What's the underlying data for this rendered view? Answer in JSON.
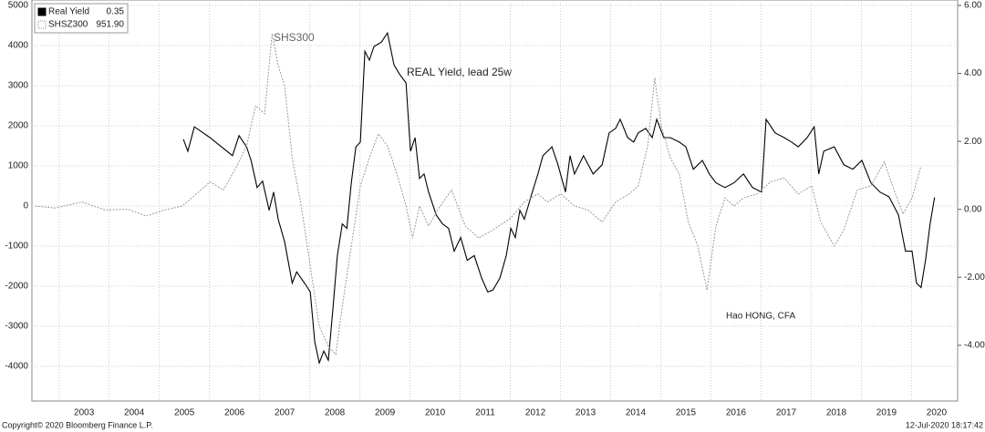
{
  "chart_data": {
    "type": "line",
    "xlim": [
      2002.46,
      2020.92
    ],
    "xticks": [
      2003,
      2004,
      2005,
      2006,
      2007,
      2008,
      2009,
      2010,
      2011,
      2012,
      2013,
      2014,
      2015,
      2016,
      2017,
      2018,
      2019,
      2020
    ],
    "ylim": [
      -4864,
      5136
    ],
    "yticks": [
      5000,
      4000,
      3000,
      2000,
      1000,
      0,
      -1000,
      -2000,
      -3000,
      -4000
    ],
    "y2lim": [
      -5.64,
      6.16
    ],
    "y2ticks": [
      {
        "value": 6,
        "label": "6.00"
      },
      {
        "value": 4,
        "label": "4.00"
      },
      {
        "value": 2,
        "label": "2.00"
      },
      {
        "value": 0,
        "label": "0.00"
      },
      {
        "value": -2,
        "label": "-2.00"
      },
      {
        "value": -4,
        "label": "-4.00"
      }
    ],
    "grid": true,
    "legend": "upper left",
    "annotations": [
      "SHS300",
      "REAL Yield, lead 25w",
      "Hao HONG, CFA"
    ],
    "footer": [
      "Copyright© 2020 Bloomberg Finance L.P.",
      "12-Jul-2020 18:17:42"
    ],
    "series": [
      {
        "name": "Real Yield",
        "color": "#000000",
        "axis": "y2",
        "last_value": 0.35,
        "x": [
          2005.48,
          2005.57,
          2005.7,
          2006.01,
          2006.46,
          2006.59,
          2006.74,
          2006.83,
          2006.95,
          2007.06,
          2007.19,
          2007.28,
          2007.37,
          2007.5,
          2007.65,
          2007.74,
          2007.92,
          2008.01,
          2008.1,
          2008.19,
          2008.28,
          2008.37,
          2008.46,
          2008.55,
          2008.65,
          2008.74,
          2008.83,
          2008.92,
          2009.01,
          2009.1,
          2009.19,
          2009.28,
          2009.43,
          2009.55,
          2009.68,
          2009.79,
          2009.92,
          2010.01,
          2010.1,
          2010.19,
          2010.28,
          2010.37,
          2010.52,
          2010.65,
          2010.77,
          2010.88,
          2011.01,
          2011.14,
          2011.28,
          2011.43,
          2011.55,
          2011.65,
          2011.79,
          2011.92,
          2012.01,
          2012.1,
          2012.19,
          2012.28,
          2012.41,
          2012.55,
          2012.65,
          2012.83,
          2012.95,
          2013.1,
          2013.19,
          2013.28,
          2013.46,
          2013.65,
          2013.83,
          2013.97,
          2014.1,
          2014.19,
          2014.34,
          2014.46,
          2014.55,
          2014.7,
          2014.83,
          2014.92,
          2015.06,
          2015.19,
          2015.37,
          2015.5,
          2015.65,
          2015.83,
          2015.97,
          2016.1,
          2016.28,
          2016.46,
          2016.65,
          2016.83,
          2017.01,
          2017.1,
          2017.28,
          2017.46,
          2017.61,
          2017.74,
          2017.92,
          2018.06,
          2018.15,
          2018.25,
          2018.46,
          2018.65,
          2018.83,
          2019.01,
          2019.19,
          2019.37,
          2019.55,
          2019.74,
          2019.88,
          2020.01,
          2020.1,
          2020.19,
          2020.28,
          2020.37,
          2020.46
        ],
        "values": [
          2.06,
          1.71,
          2.43,
          2.11,
          1.58,
          2.17,
          1.84,
          1.44,
          0.64,
          0.83,
          -0.03,
          0.51,
          -0.29,
          -0.96,
          -2.17,
          -1.84,
          -2.22,
          -2.43,
          -3.9,
          -4.52,
          -4.17,
          -4.44,
          -2.97,
          -1.36,
          -0.43,
          -0.56,
          0.78,
          1.84,
          1.98,
          4.65,
          4.39,
          4.79,
          4.92,
          5.19,
          4.25,
          3.98,
          3.72,
          1.71,
          2.11,
          0.91,
          1.04,
          0.51,
          -0.16,
          -0.43,
          -0.56,
          -1.23,
          -0.83,
          -1.5,
          -1.36,
          -2.03,
          -2.43,
          -2.38,
          -2.03,
          -1.36,
          -0.56,
          -0.83,
          -0.03,
          -0.29,
          0.37,
          1.04,
          1.58,
          1.84,
          1.31,
          0.51,
          1.58,
          1.04,
          1.58,
          1.04,
          1.31,
          2.25,
          2.38,
          2.65,
          2.11,
          1.98,
          2.25,
          2.38,
          2.11,
          2.65,
          2.11,
          2.11,
          1.98,
          1.84,
          1.18,
          1.44,
          1.04,
          0.78,
          0.64,
          0.78,
          1.04,
          0.64,
          0.51,
          2.65,
          2.25,
          2.11,
          1.98,
          1.84,
          2.11,
          2.43,
          1.04,
          1.71,
          1.84,
          1.31,
          1.18,
          1.44,
          0.78,
          0.51,
          0.37,
          -0.16,
          -1.23,
          -1.23,
          -2.17,
          -2.3,
          -1.5,
          -0.43,
          0.35
        ]
      },
      {
        "name": "SHSZ300",
        "color": "#999999",
        "axis": "y",
        "last_value": 951.9,
        "last_value_label": "951.90",
        "x": [
          2002.52,
          2002.92,
          2003.46,
          2003.92,
          2004.37,
          2004.74,
          2005.1,
          2005.46,
          2005.74,
          2006.01,
          2006.28,
          2006.55,
          2006.74,
          2006.92,
          2007.1,
          2007.25,
          2007.37,
          2007.5,
          2007.65,
          2007.83,
          2008.01,
          2008.19,
          2008.37,
          2008.52,
          2008.65,
          2008.83,
          2009.01,
          2009.19,
          2009.37,
          2009.55,
          2009.74,
          2009.92,
          2010.05,
          2010.19,
          2010.37,
          2010.55,
          2010.83,
          2011.1,
          2011.37,
          2011.65,
          2012.01,
          2012.28,
          2012.55,
          2012.74,
          2013.01,
          2013.28,
          2013.55,
          2013.83,
          2014.1,
          2014.37,
          2014.55,
          2014.74,
          2014.88,
          2015.01,
          2015.19,
          2015.37,
          2015.55,
          2015.74,
          2015.92,
          2016.1,
          2016.28,
          2016.46,
          2016.65,
          2016.92,
          2017.19,
          2017.46,
          2017.74,
          2018.01,
          2018.19,
          2018.46,
          2018.65,
          2018.92,
          2019.19,
          2019.46,
          2019.65,
          2019.83,
          2020.01,
          2020.19
        ],
        "values": [
          0,
          -50,
          100,
          -100,
          -80,
          -250,
          -100,
          0,
          300,
          600,
          400,
          1000,
          1500,
          2500,
          2300,
          4300,
          3500,
          3000,
          1200,
          0,
          -1500,
          -3000,
          -3500,
          -3700,
          -2500,
          -1000,
          500,
          1200,
          1800,
          1500,
          800,
          0,
          -800,
          0,
          -500,
          -100,
          400,
          -500,
          -800,
          -600,
          -300,
          100,
          300,
          100,
          300,
          0,
          -100,
          -400,
          100,
          300,
          500,
          1500,
          3200,
          2000,
          1200,
          800,
          -400,
          -1000,
          -2100,
          -500,
          200,
          0,
          200,
          300,
          600,
          700,
          300,
          500,
          -400,
          -1000,
          -600,
          400,
          500,
          1100,
          400,
          -200,
          200,
          1000
        ]
      }
    ]
  }
}
